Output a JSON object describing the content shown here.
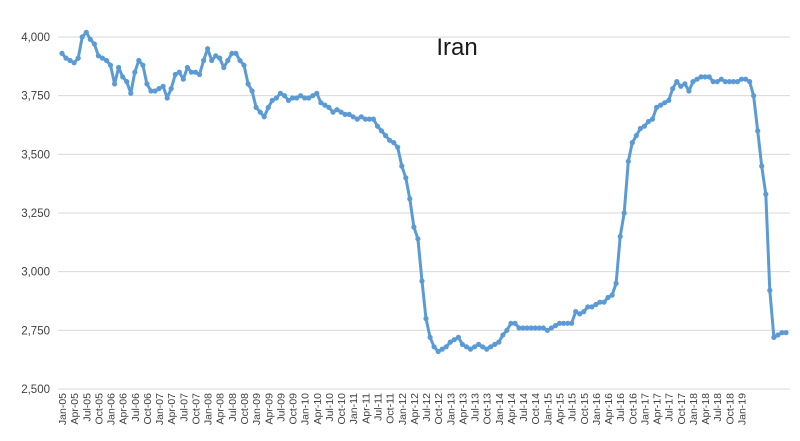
{
  "chart_data": {
    "type": "line",
    "title": "Iran",
    "xlabel": "",
    "ylabel": "",
    "ylim": [
      2500,
      4000
    ],
    "y_ticks": [
      2500,
      2750,
      3000,
      3250,
      3500,
      3750,
      4000
    ],
    "y_tick_labels": [
      "2,500",
      "2,750",
      "3,000",
      "3,250",
      "3,500",
      "3,750",
      "4,000"
    ],
    "grid": true,
    "legend": "none",
    "series_color": "#5b9bd5",
    "x_tick_labels": [
      "Jan-05",
      "Apr-05",
      "Jul-05",
      "Oct-05",
      "Jan-06",
      "Apr-06",
      "Jul-06",
      "Oct-06",
      "Jan-07",
      "Apr-07",
      "Jul-07",
      "Oct-07",
      "Jan-08",
      "Apr-08",
      "Jul-08",
      "Oct-08",
      "Jan-09",
      "Apr-09",
      "Jul-09",
      "Oct-09",
      "Jan-10",
      "Apr-10",
      "Jul-10",
      "Oct-10",
      "Jan-11",
      "Apr-11",
      "Jul-11",
      "Oct-11",
      "Jan-12",
      "Apr-12",
      "Jul-12",
      "Oct-12",
      "Jan-13",
      "Apr-13",
      "Jul-13",
      "Oct-13",
      "Jan-14",
      "Apr-14",
      "Jul-14",
      "Oct-14",
      "Jan-15",
      "Apr-15",
      "Jul-15",
      "Oct-15",
      "Jan-16",
      "Apr-16",
      "Jul-16",
      "Oct-16",
      "Jan-17",
      "Apr-17",
      "Jul-17",
      "Oct-17",
      "Jan-18",
      "Apr-18",
      "Jul-18",
      "Oct-18",
      "Jan-19"
    ],
    "series": [
      {
        "values": [
          3930,
          3910,
          3900,
          3890,
          3910,
          4000,
          4020,
          3990,
          3970,
          3920,
          3910,
          3900,
          3880,
          3800,
          3870,
          3830,
          3810,
          3760,
          3850,
          3900,
          3880,
          3800,
          3770,
          3770,
          3780,
          3790,
          3740,
          3780,
          3840,
          3850,
          3820,
          3870,
          3850,
          3850,
          3840,
          3900,
          3950,
          3900,
          3920,
          3910,
          3870,
          3900,
          3930,
          3930,
          3900,
          3880,
          3800,
          3770,
          3700,
          3680,
          3660,
          3700,
          3730,
          3740,
          3760,
          3750,
          3730,
          3740,
          3740,
          3750,
          3740,
          3740,
          3750,
          3760,
          3720,
          3710,
          3700,
          3680,
          3690,
          3680,
          3670,
          3670,
          3660,
          3650,
          3660,
          3650,
          3650,
          3650,
          3620,
          3600,
          3580,
          3560,
          3550,
          3530,
          3450,
          3400,
          3310,
          3190,
          3140,
          2960,
          2800,
          2720,
          2680,
          2660,
          2670,
          2680,
          2700,
          2710,
          2720,
          2690,
          2680,
          2670,
          2680,
          2690,
          2680,
          2670,
          2680,
          2690,
          2700,
          2730,
          2750,
          2780,
          2780,
          2760,
          2760,
          2760,
          2760,
          2760,
          2760,
          2760,
          2750,
          2760,
          2770,
          2780,
          2780,
          2780,
          2780,
          2830,
          2820,
          2830,
          2850,
          2850,
          2860,
          2870,
          2870,
          2890,
          2900,
          2950,
          3150,
          3250,
          3470,
          3550,
          3580,
          3610,
          3620,
          3640,
          3650,
          3700,
          3710,
          3720,
          3730,
          3780,
          3810,
          3790,
          3800,
          3770,
          3810,
          3820,
          3830,
          3830,
          3830,
          3810,
          3810,
          3820,
          3810,
          3810,
          3810,
          3810,
          3820,
          3820,
          3810,
          3750,
          3600,
          3450,
          3330,
          2920,
          2720,
          2730,
          2740,
          2740
        ]
      }
    ]
  }
}
